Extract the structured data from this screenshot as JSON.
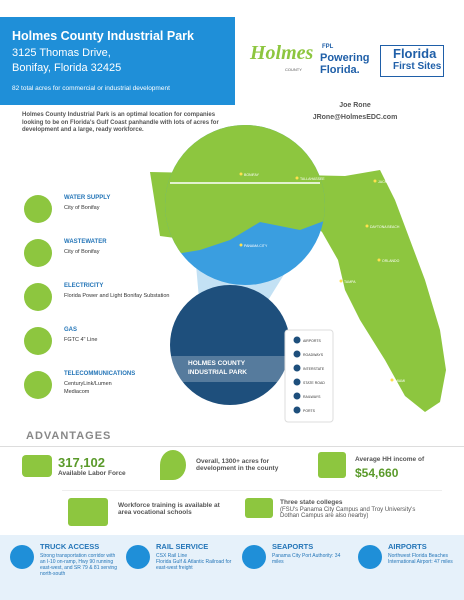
{
  "header": {
    "title": "Holmes County Industrial Park",
    "address": [
      "3125 Thomas Drive,",
      "Bonifay, Florida 32425"
    ],
    "tagline": "82 total acres for commercial or industrial development"
  },
  "intro": "Holmes County Industrial Park is an optimal location for companies looking to be on Florida's Gulf Coast panhandle with lots of acres for development and a large, ready workforce.",
  "logos": {
    "holmes": "Holmes",
    "county": "COUNTY",
    "fpl": "FPL",
    "powering": "Powering",
    "florida": "Florida.",
    "ffs1": "Florida",
    "ffs2": "First Sites"
  },
  "contact": {
    "name": "Joe Rone",
    "email": "JRone@HolmesEDC.com"
  },
  "utilities": [
    {
      "title": "WATER SUPPLY",
      "lines": [
        "City of Bonifay"
      ]
    },
    {
      "title": "WASTEWATER",
      "lines": [
        "City of Bonifay"
      ]
    },
    {
      "title": "ELECTRICITY",
      "lines": [
        "Florida Power and Light Bonifay Substation"
      ]
    },
    {
      "title": "GAS",
      "lines": [
        "FGTC 4\" Line"
      ]
    },
    {
      "title": "TELECOMMUNICATIONS",
      "lines": [
        "CenturyLink/Lumen",
        "Mediacom"
      ]
    }
  ],
  "map": {
    "site": [
      "HOLMES COUNTY",
      "INDUSTRIAL PARK"
    ],
    "cities": [
      "BONIFAY",
      "PANAMA CITY",
      "TALLAHASSEE",
      "JACKSONVILLE",
      "DAYTONA BEACH",
      "ORLANDO",
      "TAMPA",
      "MIAMI"
    ],
    "legend": [
      "AIRPORTS",
      "ROADWAYS",
      "INTERSTATE",
      "STATE ROAD",
      "RAILWAYS",
      "PORTS"
    ]
  },
  "advantages": {
    "heading": "ADVANTAGES",
    "labor_value": "317,102",
    "labor_label": "Available Labor Force",
    "acres": "Overall, 1300+ acres for development in the county",
    "income_label": "Average HH income of",
    "income_value": "$54,660",
    "training": "Workforce training is available at area vocational schools",
    "colleges_title": "Three state colleges",
    "colleges_note": "(FSU's Panama City Campus and Troy University's Dothan Campus are also nearby)"
  },
  "transport": [
    {
      "title": "TRUCK ACCESS",
      "lines": [
        "Strong transportation corridor with an I-10 on-ramp, Hwy 90 running east-west, and SR 79 & 81 serving north-south"
      ]
    },
    {
      "title": "RAIL SERVICE",
      "lines": [
        "CSX Rail Line",
        "Florida Gulf & Atlantic Railroad for east-west freight"
      ]
    },
    {
      "title": "SEAPORTS",
      "lines": [
        "Panama City Port Authority: 34 miles"
      ]
    },
    {
      "title": "AIRPORTS",
      "lines": [
        "Northwest Florida Beaches International Airport: 47 miles"
      ]
    }
  ]
}
